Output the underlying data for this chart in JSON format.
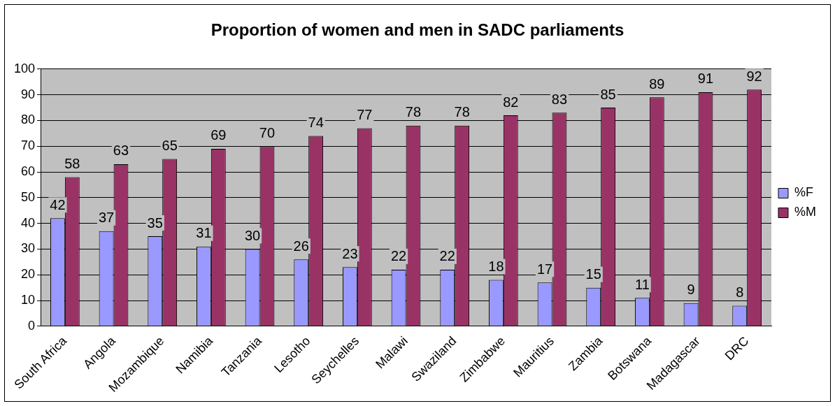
{
  "chart_data": {
    "type": "bar",
    "title": "Proportion of women and men in SADC parliaments",
    "categories": [
      "South Africa",
      "Angola",
      "Mozambique",
      "Namibia",
      "Tanzania",
      "Lesotho",
      "Seychelles",
      "Malawi",
      "Swaziland",
      "Zimbabwe",
      "Mauritius",
      "Zambia",
      "Botswana",
      "Madagascar",
      "DRC"
    ],
    "series": [
      {
        "name": "%F",
        "color": "#9999ff",
        "values": [
          42,
          37,
          35,
          31,
          30,
          26,
          23,
          22,
          22,
          18,
          17,
          15,
          11,
          9,
          8
        ]
      },
      {
        "name": "%M",
        "color": "#993366",
        "values": [
          58,
          63,
          65,
          69,
          70,
          74,
          77,
          78,
          78,
          82,
          83,
          85,
          89,
          91,
          92
        ]
      }
    ],
    "ylim": [
      0,
      100
    ],
    "yticks": [
      0,
      10,
      20,
      30,
      40,
      50,
      60,
      70,
      80,
      90,
      100
    ],
    "grid": "y",
    "legend": "right",
    "data_labels": true
  }
}
